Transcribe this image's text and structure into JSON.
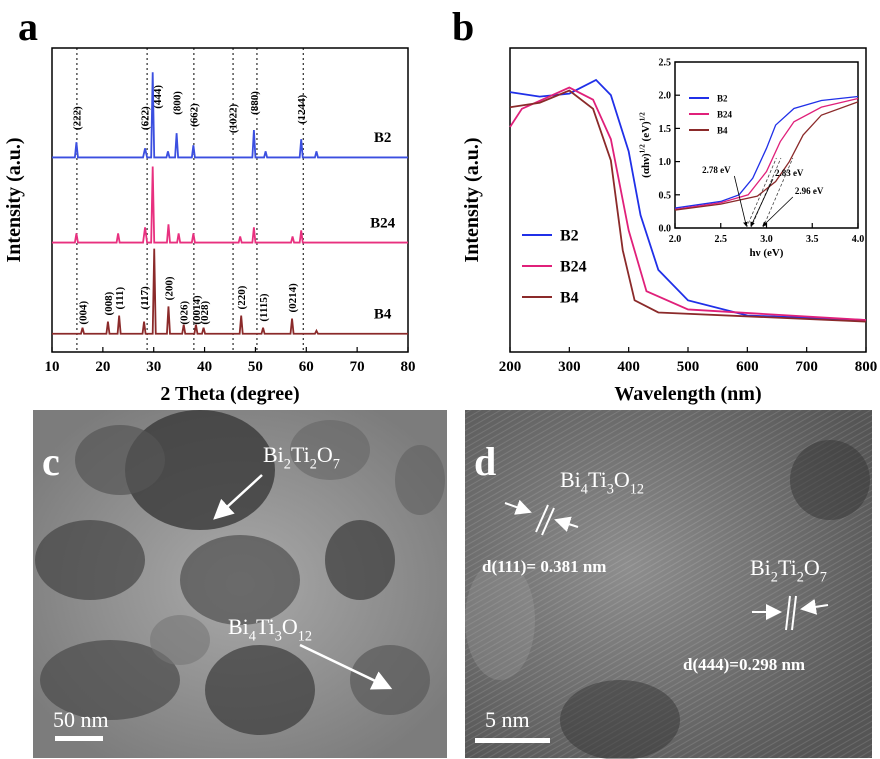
{
  "chart_data": [
    {
      "type": "line",
      "panel": "a",
      "x_label": "2 Theta (degree)",
      "y_label": "Intensity (a.u.)",
      "xlim": [
        10,
        80
      ],
      "xticks": [
        10,
        20,
        30,
        40,
        50,
        60,
        70,
        80
      ],
      "ylim": [
        0,
        100
      ],
      "reference_lines": [
        14.9,
        28.7,
        37.9,
        45.6,
        50.3,
        59.4
      ],
      "series": [
        {
          "name": "B2",
          "color": "#3b4fe0",
          "x": [
            10,
            14.5,
            14.8,
            15.1,
            27.9,
            28.3,
            28.7,
            29.5,
            29.8,
            30.1,
            32.5,
            32.8,
            33.1,
            34.2,
            34.5,
            34.8,
            37.5,
            37.8,
            38.1,
            49.4,
            49.7,
            50.0,
            51.7,
            52,
            52.3,
            58.7,
            59,
            59.3,
            61.7,
            62,
            62.3,
            80
          ],
          "values": [
            64,
            64,
            69,
            64,
            64,
            67,
            64,
            64,
            92,
            64,
            64,
            66,
            64,
            64,
            72,
            64,
            64,
            68,
            64,
            64,
            73,
            64,
            64,
            66,
            64,
            64,
            70,
            64,
            64,
            66,
            64,
            64
          ]
        },
        {
          "name": "B24",
          "color": "#e8307f",
          "x": [
            10,
            14.5,
            14.8,
            15.1,
            22.7,
            23,
            23.3,
            27.9,
            28.3,
            28.7,
            29.5,
            29.8,
            30.1,
            32.6,
            32.9,
            33.2,
            34.6,
            34.9,
            35.2,
            37.5,
            37.8,
            38.1,
            46.7,
            47,
            47.3,
            49.4,
            49.7,
            50,
            57,
            57.3,
            57.6,
            58.7,
            59,
            59.3,
            80
          ],
          "values": [
            36,
            36,
            39,
            36,
            36,
            39,
            36,
            36,
            41,
            36,
            36,
            61,
            36,
            36,
            42,
            36,
            36,
            39,
            36,
            36,
            39,
            36,
            36,
            38,
            36,
            36,
            41,
            36,
            36,
            38,
            36,
            36,
            40,
            36,
            36
          ]
        },
        {
          "name": "B4",
          "color": "#8b2a2a",
          "x": [
            10,
            15.7,
            16,
            16.3,
            20.7,
            21,
            21.3,
            22.9,
            23.2,
            23.5,
            27.8,
            28.1,
            28.4,
            29.8,
            30.1,
            30.4,
            32.6,
            32.9,
            33.2,
            35.6,
            35.9,
            36.2,
            38,
            38.3,
            38.6,
            39.5,
            39.8,
            40.1,
            46.9,
            47.2,
            47.5,
            51.2,
            51.5,
            51.8,
            56.9,
            57.2,
            57.5,
            61.7,
            62,
            62.3,
            80
          ],
          "values": [
            6,
            6,
            8,
            6,
            6,
            10,
            6,
            6,
            12,
            6,
            6,
            10,
            6,
            6,
            34,
            6,
            6,
            15,
            6,
            6,
            9,
            6,
            6,
            9,
            6,
            6,
            8,
            6,
            6,
            12,
            6,
            6,
            8,
            6,
            6,
            11,
            6,
            6,
            7,
            6,
            6
          ]
        }
      ],
      "annotations": [
        {
          "text": "(222)",
          "x": 14.8,
          "y": 73
        },
        {
          "text": "(622)",
          "x": 28.2,
          "y": 73
        },
        {
          "text": "(444)",
          "x": 30.6,
          "y": 80
        },
        {
          "text": "(800)",
          "x": 34.5,
          "y": 78
        },
        {
          "text": "(662)",
          "x": 37.8,
          "y": 74
        },
        {
          "text": "(1022)",
          "x": 45.5,
          "y": 72
        },
        {
          "text": "(880)",
          "x": 49.7,
          "y": 78
        },
        {
          "text": "(1244)",
          "x": 59.0,
          "y": 75
        },
        {
          "text": "(004)",
          "x": 16,
          "y": 9
        },
        {
          "text": "(008)",
          "x": 21,
          "y": 12
        },
        {
          "text": "(111)",
          "x": 23.2,
          "y": 14
        },
        {
          "text": "(117)",
          "x": 28.1,
          "y": 14
        },
        {
          "text": "(200)",
          "x": 32.9,
          "y": 17
        },
        {
          "text": "(026)",
          "x": 35.9,
          "y": 9
        },
        {
          "text": "(0014)",
          "x": 38.3,
          "y": 9
        },
        {
          "text": "(028)",
          "x": 39.9,
          "y": 9
        },
        {
          "text": "(220)",
          "x": 47.2,
          "y": 14
        },
        {
          "text": "(1115)",
          "x": 51.5,
          "y": 10
        },
        {
          "text": "(0214)",
          "x": 57.2,
          "y": 13
        }
      ]
    },
    {
      "type": "line",
      "panel": "b",
      "x_label": "Wavelength (nm)",
      "y_label": "Intensity (a.u.)",
      "xlim": [
        200,
        800
      ],
      "xticks": [
        200,
        300,
        400,
        500,
        600,
        700,
        800
      ],
      "ylim": [
        0,
        100
      ],
      "legend": "center left",
      "series": [
        {
          "name": "B2",
          "color": "#2030e8",
          "x": [
            200,
            250,
            300,
            345,
            370,
            400,
            420,
            450,
            500,
            600,
            800
          ],
          "values": [
            85.5,
            84,
            85,
            89.5,
            84.5,
            66,
            45,
            27,
            17,
            12,
            10.5
          ]
        },
        {
          "name": "B24",
          "color": "#e0207a",
          "x": [
            200,
            220,
            300,
            340,
            370,
            400,
            430,
            500,
            800
          ],
          "values": [
            74,
            80,
            87,
            83,
            70,
            40,
            20,
            14,
            10.5
          ]
        },
        {
          "name": "B4",
          "color": "#8b2a2a",
          "x": [
            200,
            250,
            300,
            340,
            370,
            390,
            410,
            450,
            800
          ],
          "values": [
            80.5,
            82,
            86,
            80,
            63,
            33.5,
            17,
            13,
            10
          ]
        }
      ]
    },
    {
      "type": "line",
      "x_label": "hν (eV)",
      "y_label": [
        "(αhν)",
        "1/2",
        " (eV)",
        "1/2"
      ],
      "xlim": [
        2.0,
        4.0
      ],
      "xticks": [
        {
          "value": 2,
          "label": "2.0"
        },
        2.5,
        {
          "value": 3,
          "label": "3.0"
        },
        3.5,
        {
          "value": 4,
          "label": "4.0"
        }
      ],
      "ylim": [
        0,
        2.5
      ],
      "yticks": [
        {
          "value": 0,
          "label": "0.0"
        },
        0.5,
        {
          "value": 1,
          "label": "1.0"
        },
        1.5,
        {
          "value": 2,
          "label": "2.0"
        },
        2.5
      ],
      "legend": "upper left",
      "series": [
        {
          "name": "B2",
          "color": "#2030e8",
          "x": [
            2.0,
            2.5,
            2.7,
            2.85,
            3.0,
            3.1,
            3.3,
            3.6,
            4.0
          ],
          "values": [
            0.3,
            0.4,
            0.5,
            0.75,
            1.2,
            1.55,
            1.8,
            1.92,
            1.98
          ]
        },
        {
          "name": "B24",
          "color": "#e0207a",
          "x": [
            2.0,
            2.5,
            2.8,
            3.0,
            3.15,
            3.3,
            3.6,
            4.0
          ],
          "values": [
            0.28,
            0.38,
            0.5,
            0.85,
            1.3,
            1.6,
            1.82,
            1.95
          ]
        },
        {
          "name": "B4",
          "color": "#8b2a2a",
          "x": [
            2.0,
            2.5,
            2.9,
            3.1,
            3.25,
            3.4,
            3.6,
            4.0
          ],
          "values": [
            0.27,
            0.36,
            0.48,
            0.7,
            1.0,
            1.4,
            1.7,
            1.9
          ]
        }
      ],
      "annotations": [
        {
          "text": "2.78 eV",
          "x": 2.78
        },
        {
          "text": "2.83 eV",
          "x": 2.83
        },
        {
          "text": "2.96 eV",
          "x": 2.96
        }
      ]
    }
  ],
  "images": [
    {
      "panel": "c",
      "labels": [
        [
          "Bi",
          "2",
          "Ti",
          "2",
          "O",
          "7"
        ],
        [
          "Bi",
          "4",
          "Ti",
          "3",
          "O",
          "12"
        ]
      ],
      "scale_bar": "50 nm"
    },
    {
      "panel": "d",
      "labels": [
        [
          "Bi",
          "4",
          "Ti",
          "3",
          "O",
          "12"
        ],
        [
          "Bi",
          "2",
          "Ti",
          "2",
          "O",
          "7"
        ]
      ],
      "spacings": [
        "d(111)= 0.381 nm",
        "d(444)=0.298 nm"
      ],
      "scale_bar": "5 nm"
    }
  ]
}
